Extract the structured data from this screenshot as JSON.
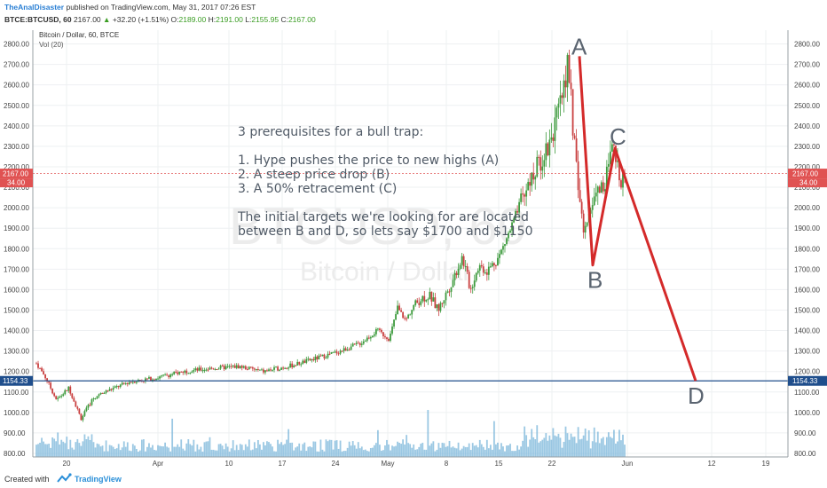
{
  "header": {
    "author": "TheAnalDisaster",
    "published": "published on TradingView.com, May 31, 2017 07:26 EST",
    "symbol": "BTCE:BTCUSD, 60",
    "last": "2167.00",
    "change": "+32.20 (+1.51%)",
    "o_label": "O:",
    "o_val": "2189.00",
    "h_label": "H:",
    "h_val": "2191.00",
    "l_label": "L:",
    "l_val": "2155.95",
    "c_label": "C:",
    "c_val": "2167.00"
  },
  "legend": {
    "series_title": "Bitcoin / Dollar, 60, BTCE",
    "volume_label": "Vol (20)"
  },
  "watermark": {
    "line1": "BTCUSD, 60",
    "line2": "Bitcoin / Dollar"
  },
  "annotation": {
    "lines": [
      "3 prerequisites for a bull trap:",
      "",
      "1. Hype pushes the price to new highs (A)",
      "2. A steep price drop (B)",
      "3. A 50% retracement (C)",
      "",
      "The initial targets we're looking for are located",
      "between B and D, so lets say $1700 and $1150"
    ]
  },
  "price_tags": {
    "last_price": "2167.00",
    "vol_value": "34.00",
    "line_price": "1154.33"
  },
  "footer": {
    "created_with": "Created with",
    "brand": "TradingView"
  },
  "colors": {
    "up_candle": "#3e9b3e",
    "down_candle": "#c94040",
    "volume": "#7ab6d9",
    "pattern_line": "#d42a2a",
    "hline": "#1f4e8c",
    "price_tag_red": "#e05252",
    "price_tag_blue": "#1f4e8c"
  },
  "chart_data": {
    "type": "candlestick",
    "y_axis": {
      "min": 800,
      "max": 2850,
      "ticks": [
        800,
        900,
        1000,
        1100,
        1200,
        1300,
        1400,
        1500,
        1600,
        1700,
        1800,
        1900,
        2000,
        2100,
        2200,
        2300,
        2400,
        2500,
        2600,
        2700,
        2800
      ]
    },
    "x_ticks": [
      "20",
      "Apr",
      "10",
      "17",
      "24",
      "May",
      "8",
      "15",
      "22",
      "Jun",
      "12",
      "19"
    ],
    "price_path": [
      [
        0,
        1240
      ],
      [
        0.02,
        1180
      ],
      [
        0.05,
        1060
      ],
      [
        0.08,
        1120
      ],
      [
        0.11,
        970
      ],
      [
        0.14,
        1070
      ],
      [
        0.18,
        1110
      ],
      [
        0.23,
        1150
      ],
      [
        0.3,
        1170
      ],
      [
        0.36,
        1200
      ],
      [
        0.43,
        1215
      ],
      [
        0.5,
        1225
      ],
      [
        0.56,
        1200
      ],
      [
        0.63,
        1230
      ],
      [
        0.7,
        1270
      ],
      [
        0.75,
        1300
      ],
      [
        0.8,
        1340
      ],
      [
        0.84,
        1400
      ],
      [
        0.87,
        1360
      ],
      [
        0.89,
        1510
      ],
      [
        0.91,
        1450
      ],
      [
        0.93,
        1520
      ],
      [
        0.95,
        1560
      ],
      [
        0.97,
        1570
      ],
      [
        0.99,
        1500
      ],
      [
        1.02,
        1620
      ],
      [
        1.05,
        1760
      ],
      [
        1.07,
        1600
      ],
      [
        1.09,
        1720
      ],
      [
        1.11,
        1690
      ],
      [
        1.14,
        1760
      ],
      [
        1.17,
        1900
      ],
      [
        1.2,
        2050
      ],
      [
        1.23,
        2180
      ],
      [
        1.26,
        2300
      ],
      [
        1.29,
        2480
      ],
      [
        1.31,
        2720
      ],
      [
        1.33,
        2200
      ],
      [
        1.35,
        1860
      ],
      [
        1.37,
        2050
      ],
      [
        1.4,
        2120
      ],
      [
        1.42,
        2280
      ],
      [
        1.44,
        2150
      ],
      [
        1.45,
        2167
      ]
    ],
    "pattern_points": [
      {
        "label": "A",
        "date": "May 25",
        "price": 2740
      },
      {
        "label": "B",
        "date": "May 27",
        "price": 1720
      },
      {
        "label": "C",
        "date": "May 29",
        "price": 2290
      },
      {
        "label": "D",
        "date": "Jun 10",
        "price": 1154.33
      }
    ],
    "horizontal_line": 1154.33,
    "volume": "histogram along bottom (Vol 20)"
  }
}
